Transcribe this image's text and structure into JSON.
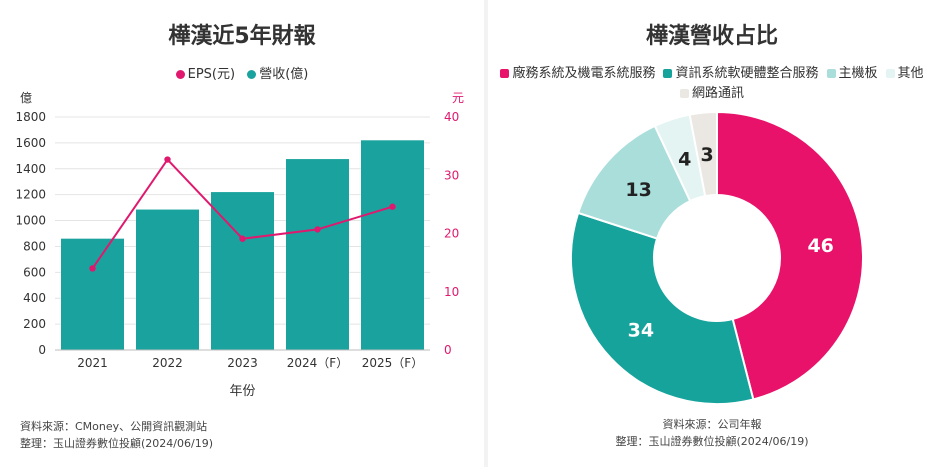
{
  "left_chart": {
    "title": "樺漢近5年財報",
    "legend": [
      {
        "label": "EPS(元)",
        "color": "#e0196e"
      },
      {
        "label": "營收(億)",
        "color": "#1aa39e"
      }
    ],
    "y_left_unit": "億",
    "y_right_unit": "元",
    "xlabel": "年份",
    "source": "資料來源：CMoney、公開資訊觀測站",
    "compiler": "整理：玉山證券數位投顧(2024/06/19)"
  },
  "right_chart": {
    "title": "樺漢營收占比",
    "source": "資料來源：公司年報",
    "compiler": "整理：玉山證券數位投顧(2024/06/19)"
  },
  "chart_data": [
    {
      "type": "bar",
      "title": "樺漢近5年財報",
      "categories": [
        "2021",
        "2022",
        "2023",
        "2024（F）",
        "2025（F）"
      ],
      "xlabel": "年份",
      "ylabel": "億",
      "ylabel_right": "元",
      "ylim": [
        0,
        1800
      ],
      "ylim_right": [
        0,
        40
      ],
      "yticks": [
        0,
        200,
        400,
        600,
        800,
        1000,
        1200,
        1400,
        1600,
        1800
      ],
      "yticks_right": [
        0,
        10,
        20,
        30,
        40
      ],
      "series": [
        {
          "name": "營收(億)",
          "type": "bar",
          "axis": "left",
          "color": "#1aa39e",
          "values": [
            860,
            1085,
            1220,
            1475,
            1620
          ]
        },
        {
          "name": "EPS(元)",
          "type": "line",
          "axis": "right",
          "color": "#e0196e",
          "values": [
            14.0,
            32.7,
            19.1,
            20.7,
            24.6
          ]
        }
      ],
      "grid": true,
      "legend_position": "top"
    },
    {
      "type": "pie",
      "title": "樺漢營收占比",
      "donut": true,
      "labels": [
        "廠務系統及機電系統服務",
        "資訊系統軟硬體整合服務",
        "主機板",
        "其他",
        "網路通訊"
      ],
      "values": [
        46,
        34,
        13,
        4,
        3
      ],
      "colors": [
        "#e8126b",
        "#15a39c",
        "#a9dedb",
        "#e3f4f3",
        "#ebe7e2"
      ],
      "legend_position": "top"
    }
  ]
}
